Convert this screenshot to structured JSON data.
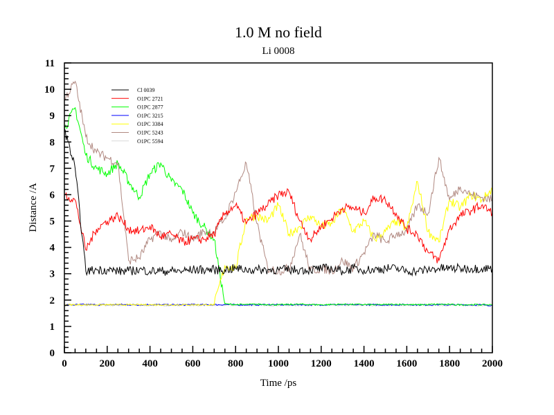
{
  "chart_data": {
    "type": "line",
    "title": "1.0 M no field",
    "subtitle": "Li 0008",
    "xlabel": "Time /ps",
    "ylabel": "Distance /A",
    "xlim": [
      0,
      2000
    ],
    "ylim": [
      0,
      11
    ],
    "xticks": [
      0,
      200,
      400,
      600,
      800,
      1000,
      1200,
      1400,
      1600,
      1800,
      2000
    ],
    "yticks": [
      0,
      1,
      2,
      3,
      4,
      5,
      6,
      7,
      8,
      9,
      10,
      11
    ],
    "legend_position": "top-left",
    "x": [
      0,
      50,
      100,
      150,
      200,
      250,
      300,
      350,
      400,
      450,
      500,
      550,
      600,
      650,
      700,
      750,
      800,
      850,
      900,
      950,
      1000,
      1050,
      1100,
      1150,
      1200,
      1250,
      1300,
      1350,
      1400,
      1450,
      1500,
      1550,
      1600,
      1650,
      1700,
      1750,
      1800,
      1850,
      1900,
      1950,
      2000
    ],
    "series": [
      {
        "name": "Cl 0039",
        "color": "#000000",
        "values": [
          8.5,
          7.0,
          3.1,
          3.15,
          3.15,
          3.1,
          3.1,
          3.15,
          3.1,
          3.1,
          3.1,
          3.1,
          3.15,
          3.15,
          3.15,
          3.15,
          3.2,
          3.15,
          3.15,
          3.15,
          3.15,
          3.15,
          3.15,
          3.15,
          3.2,
          3.2,
          3.1,
          3.2,
          3.15,
          3.15,
          3.2,
          3.2,
          3.1,
          3.1,
          3.15,
          3.2,
          3.2,
          3.2,
          3.2,
          3.2,
          3.2
        ]
      },
      {
        "name": "O1PC 2721",
        "color": "#ff0000",
        "values": [
          6.0,
          5.8,
          3.9,
          4.7,
          5.0,
          5.2,
          4.7,
          4.6,
          4.8,
          4.4,
          4.5,
          4.2,
          4.3,
          4.3,
          4.5,
          5.3,
          5.6,
          4.9,
          5.3,
          5.6,
          6.0,
          6.1,
          5.0,
          4.3,
          4.8,
          5.1,
          5.5,
          5.5,
          5.3,
          5.9,
          5.8,
          5.3,
          4.7,
          4.5,
          3.8,
          3.5,
          4.7,
          5.2,
          5.4,
          5.6,
          5.3
        ]
      },
      {
        "name": "O1PC 2877",
        "color": "#00ff00",
        "values": [
          8.5,
          9.3,
          7.5,
          7.0,
          6.8,
          7.2,
          6.5,
          5.9,
          6.8,
          7.2,
          6.5,
          6.2,
          5.3,
          4.8,
          4.3,
          1.85,
          1.83,
          1.83,
          1.84,
          1.83,
          1.82,
          1.83,
          1.84,
          1.83,
          1.82,
          1.83,
          1.84,
          1.83,
          1.83,
          1.82,
          1.83,
          1.84,
          1.83,
          1.82,
          1.83,
          1.84,
          1.83,
          1.82,
          1.83,
          1.82,
          1.82
        ]
      },
      {
        "name": "O1PC 3215",
        "color": "#0000ff",
        "values": [
          1.82,
          1.82,
          1.83,
          1.82,
          1.82,
          1.83,
          1.82,
          1.82,
          1.83,
          1.82,
          1.82,
          1.82,
          1.83,
          1.82,
          1.82,
          1.83,
          1.82,
          1.82,
          1.82,
          1.83,
          1.82,
          1.82,
          1.83,
          1.82,
          1.82,
          1.83,
          1.82,
          1.82,
          1.83,
          1.82,
          1.82,
          1.82,
          1.83,
          1.82,
          1.82,
          1.83,
          1.82,
          1.82,
          1.82,
          1.82,
          1.8
        ]
      },
      {
        "name": "O1PC 3384",
        "color": "#ffff00",
        "values": [
          1.82,
          1.82,
          1.82,
          1.82,
          1.82,
          1.82,
          1.82,
          1.82,
          1.82,
          1.82,
          1.82,
          1.82,
          1.82,
          1.82,
          1.82,
          3.3,
          3.2,
          5.1,
          5.2,
          5.0,
          5.6,
          4.5,
          4.8,
          5.2,
          4.8,
          4.9,
          5.5,
          4.6,
          5.0,
          4.3,
          4.6,
          5.0,
          4.7,
          6.5,
          4.6,
          4.2,
          5.8,
          5.5,
          6.0,
          5.8,
          6.2
        ]
      },
      {
        "name": "O1PC 5243",
        "color": "#b08880",
        "values": [
          9.6,
          10.3,
          8.2,
          7.6,
          7.4,
          7.2,
          3.5,
          3.6,
          4.3,
          4.6,
          4.2,
          4.6,
          4.3,
          4.6,
          4.6,
          5.1,
          6.1,
          7.2,
          4.9,
          3.2,
          3.1,
          3.2,
          4.5,
          3.1,
          3.2,
          3.1,
          3.5,
          3.2,
          3.8,
          4.5,
          4.2,
          4.5,
          4.6,
          5.6,
          5.3,
          7.4,
          5.8,
          6.3,
          6.0,
          5.9,
          5.8
        ]
      },
      {
        "name": "O1PC 5594",
        "color": "#d8d8d8",
        "values": [
          1.8,
          1.8,
          1.8,
          1.8,
          1.8,
          1.8,
          1.8,
          1.8,
          1.8,
          1.8,
          1.8,
          1.8,
          1.8,
          1.8,
          1.8,
          1.8,
          1.8,
          1.8,
          1.8,
          1.8,
          1.8,
          1.8,
          1.8,
          1.8,
          1.8,
          1.8,
          1.8,
          1.8,
          1.8,
          1.8,
          1.8,
          1.8,
          1.8,
          1.8,
          1.8,
          1.8,
          1.8,
          1.8,
          1.8,
          1.8,
          1.8
        ]
      }
    ]
  }
}
